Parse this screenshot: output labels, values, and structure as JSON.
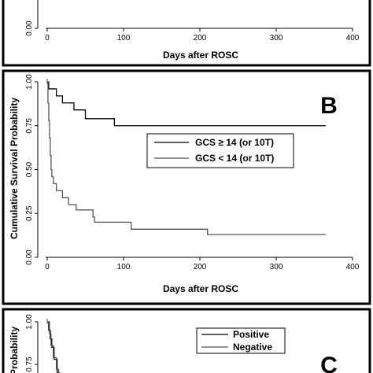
{
  "chart_data": [
    {
      "type": "line",
      "panel": "",
      "xlabel": "Days after ROSC",
      "ylabel": "",
      "xlim": [
        0,
        400
      ],
      "ylim": [
        0,
        1
      ],
      "x_ticks": [
        "0",
        "100",
        "200",
        "300",
        "400"
      ],
      "y_ticks": [
        "0.00"
      ],
      "series": []
    },
    {
      "type": "line",
      "panel": "B",
      "xlabel": "Days after ROSC",
      "ylabel": "Cumulative Survival Probability",
      "xlim": [
        0,
        400
      ],
      "ylim": [
        0,
        1
      ],
      "x_ticks": [
        "0",
        "100",
        "200",
        "300",
        "400"
      ],
      "y_ticks": [
        "0.00",
        "0.25",
        "0.50",
        "0.75",
        "1.00"
      ],
      "legend": {
        "placement": "right"
      },
      "series": [
        {
          "name": "GCS ≥ 14 (or 10T)",
          "color": "#000000",
          "steps": [
            [
              0,
              1.0
            ],
            [
              2,
              0.96
            ],
            [
              12,
              0.92
            ],
            [
              20,
              0.88
            ],
            [
              35,
              0.84
            ],
            [
              50,
              0.79
            ],
            [
              88,
              0.75
            ],
            [
              365,
              0.75
            ]
          ]
        },
        {
          "name": "GCS < 14 (or 10T)",
          "color": "#555555",
          "steps": [
            [
              0,
              1.0
            ],
            [
              1,
              0.88
            ],
            [
              2,
              0.78
            ],
            [
              3,
              0.68
            ],
            [
              4,
              0.58
            ],
            [
              5,
              0.5
            ],
            [
              6,
              0.46
            ],
            [
              8,
              0.42
            ],
            [
              12,
              0.38
            ],
            [
              20,
              0.34
            ],
            [
              28,
              0.3
            ],
            [
              38,
              0.27
            ],
            [
              60,
              0.23
            ],
            [
              62,
              0.2
            ],
            [
              110,
              0.16
            ],
            [
              210,
              0.13
            ],
            [
              365,
              0.13
            ]
          ]
        }
      ]
    },
    {
      "type": "line",
      "panel": "C",
      "xlabel": "",
      "ylabel": "",
      "xlim": [
        0,
        400
      ],
      "ylim": [
        0,
        1
      ],
      "x_ticks": [],
      "y_ticks": [
        "0.75",
        "1.00"
      ],
      "legend": {
        "placement": "top-right"
      },
      "series": [
        {
          "name": "Positive",
          "color": "#000000",
          "steps": [
            [
              0,
              1.0
            ],
            [
              2,
              0.95
            ],
            [
              4,
              0.9
            ],
            [
              6,
              0.85
            ],
            [
              9,
              0.78
            ],
            [
              13,
              0.7
            ],
            [
              16,
              0.6
            ]
          ]
        },
        {
          "name": "Negative",
          "color": "#555555",
          "steps": [
            [
              0,
              1.0
            ],
            [
              3,
              0.93
            ],
            [
              5,
              0.86
            ],
            [
              8,
              0.79
            ],
            [
              12,
              0.72
            ],
            [
              15,
              0.6
            ]
          ]
        }
      ]
    }
  ]
}
